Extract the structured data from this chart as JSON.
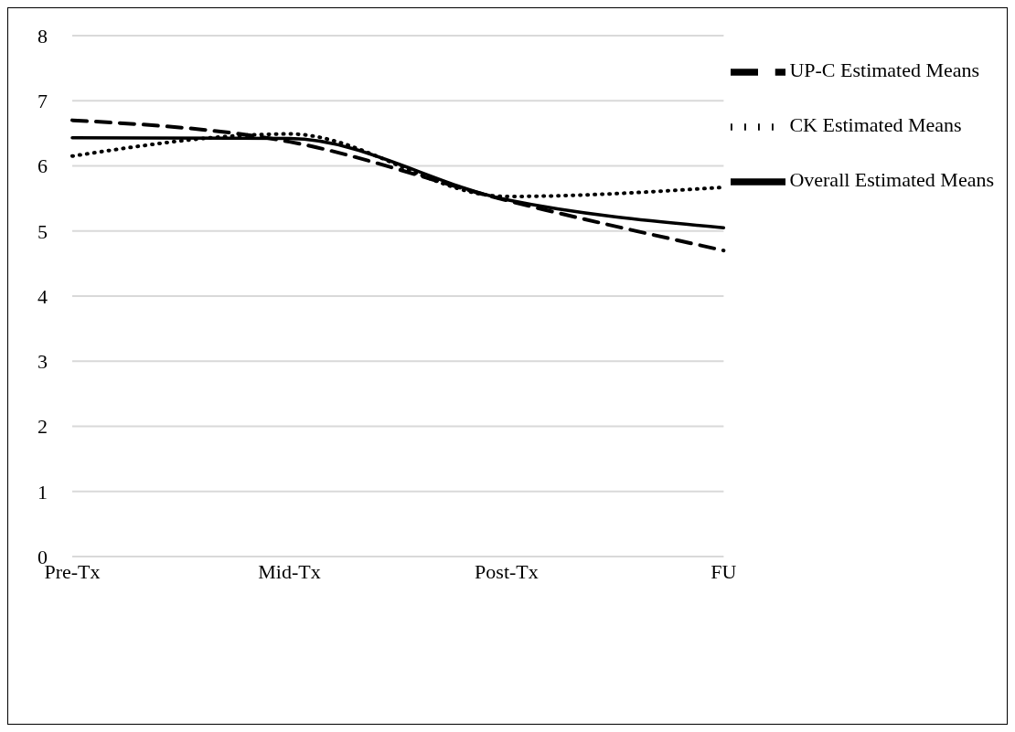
{
  "chart_data": {
    "type": "line",
    "categories": [
      "Pre-Tx",
      "Mid-Tx",
      "Post-Tx",
      "FU"
    ],
    "series": [
      {
        "name": "UP-C Estimated Means",
        "color": "#000000",
        "line_style": "dashed",
        "values": [
          6.7,
          6.37,
          5.47,
          4.7
        ]
      },
      {
        "name": "CK Estimated Means",
        "color": "#000000",
        "line_style": "dotted",
        "values": [
          6.15,
          6.49,
          5.53,
          5.67
        ]
      },
      {
        "name": "Overall Estimated Means",
        "color": "#000000",
        "line_style": "solid",
        "values": [
          6.43,
          6.42,
          5.48,
          5.05
        ]
      }
    ],
    "ylim": [
      0,
      8
    ],
    "yticks": [
      0,
      1,
      2,
      3,
      4,
      5,
      6,
      7,
      8
    ],
    "grid": "y",
    "legend": "top right",
    "marker": "none"
  }
}
